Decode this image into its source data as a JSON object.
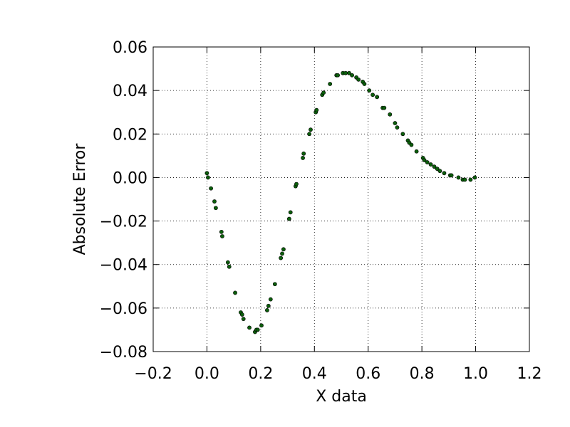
{
  "chart_data": {
    "type": "scatter",
    "x_label": "X data",
    "y_label": "Absolute Error",
    "color": "#0b5e0b",
    "x": [
      0.0,
      0.004,
      0.015,
      0.028,
      0.033,
      0.054,
      0.057,
      0.078,
      0.083,
      0.105,
      0.126,
      0.131,
      0.136,
      0.158,
      0.179,
      0.184,
      0.189,
      0.203,
      0.224,
      0.229,
      0.237,
      0.253,
      0.275,
      0.28,
      0.285,
      0.306,
      0.311,
      0.33,
      0.333,
      0.357,
      0.36,
      0.381,
      0.386,
      0.405,
      0.408,
      0.429,
      0.434,
      0.458,
      0.482,
      0.487,
      0.506,
      0.516,
      0.529,
      0.54,
      0.556,
      0.564,
      0.58,
      0.586,
      0.604,
      0.617,
      0.633,
      0.654,
      0.66,
      0.681,
      0.7,
      0.708,
      0.729,
      0.748,
      0.753,
      0.761,
      0.78,
      0.804,
      0.809,
      0.82,
      0.833,
      0.846,
      0.857,
      0.867,
      0.883,
      0.905,
      0.91,
      0.936,
      0.952,
      0.96,
      0.981,
      0.997
    ],
    "values": [
      0.002,
      0.0,
      -0.005,
      -0.011,
      -0.014,
      -0.025,
      -0.027,
      -0.039,
      -0.041,
      -0.053,
      -0.062,
      -0.063,
      -0.065,
      -0.069,
      -0.071,
      -0.07,
      -0.07,
      -0.068,
      -0.061,
      -0.059,
      -0.056,
      -0.049,
      -0.037,
      -0.035,
      -0.033,
      -0.019,
      -0.016,
      -0.004,
      -0.003,
      0.009,
      0.011,
      0.02,
      0.022,
      0.03,
      0.031,
      0.038,
      0.039,
      0.043,
      0.047,
      0.047,
      0.048,
      0.048,
      0.048,
      0.047,
      0.046,
      0.045,
      0.044,
      0.043,
      0.04,
      0.038,
      0.037,
      0.032,
      0.032,
      0.029,
      0.025,
      0.023,
      0.02,
      0.017,
      0.016,
      0.015,
      0.012,
      0.009,
      0.008,
      0.007,
      0.006,
      0.005,
      0.004,
      0.003,
      0.002,
      0.001,
      0.001,
      0.0,
      -0.001,
      -0.001,
      -0.001,
      0.0
    ],
    "xlim": [
      -0.2,
      1.2
    ],
    "xticks": [
      {
        "value": -0.2,
        "label": "−0.2"
      },
      {
        "value": 0,
        "label": "0.0"
      },
      0.2,
      0.4,
      0.6,
      0.8,
      {
        "value": 1,
        "label": "1.0"
      },
      1.2
    ],
    "ylim": [
      -0.08,
      0.06
    ],
    "yticks": [
      {
        "value": -0.08,
        "label": "−0.08"
      },
      {
        "value": -0.06,
        "label": "−0.06"
      },
      {
        "value": -0.04,
        "label": "−0.04"
      },
      {
        "value": -0.02,
        "label": "−0.02"
      },
      {
        "value": 0,
        "label": "0.00"
      },
      {
        "value": 0.02,
        "label": "0.02"
      },
      {
        "value": 0.04,
        "label": "0.04"
      },
      {
        "value": 0.06,
        "label": "0.06"
      }
    ],
    "grid": true
  }
}
